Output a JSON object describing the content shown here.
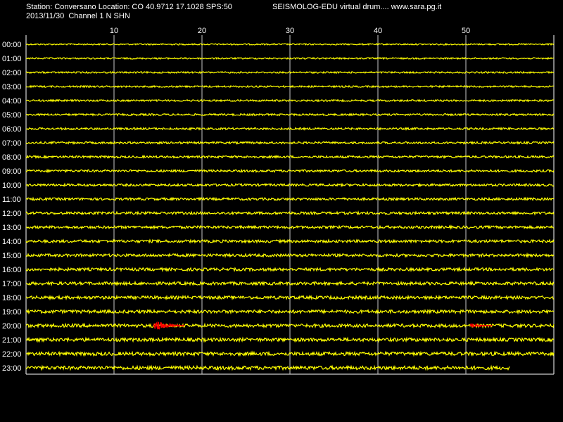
{
  "header": {
    "station_line": "Station: Conversano Location: CO 40.9712 17.1028 SPS:50",
    "date_line": "2013/11/30  Channel 1 N SHN",
    "title": "SEISMOLOG-EDU virtual drum.... www.sara.pg.it"
  },
  "colors": {
    "background": "#000000",
    "trace": "#ffff00",
    "event": "#ff0000",
    "grid": "#ffffff",
    "text": "#ffffff"
  },
  "chart_data": {
    "type": "line",
    "description": "Seismic drum (helicorder): one trace per hour, x axis in minutes",
    "x_range": [
      0,
      60
    ],
    "x_ticks": [
      10,
      20,
      30,
      40,
      50
    ],
    "rows": [
      "00:00",
      "01:00",
      "02:00",
      "03:00",
      "04:00",
      "05:00",
      "06:00",
      "07:00",
      "08:00",
      "09:00",
      "10:00",
      "11:00",
      "12:00",
      "13:00",
      "14:00",
      "15:00",
      "16:00",
      "17:00",
      "18:00",
      "19:00",
      "20:00",
      "21:00",
      "22:00",
      "23:00"
    ],
    "last_row_end_minute": 55,
    "events": [
      {
        "row": "20:00",
        "start_minute": 14.5,
        "end_minute": 18,
        "color": "#ff0000"
      },
      {
        "row": "20:00",
        "start_minute": 50.5,
        "end_minute": 53,
        "color": "#ff0000"
      }
    ],
    "grid": true
  }
}
